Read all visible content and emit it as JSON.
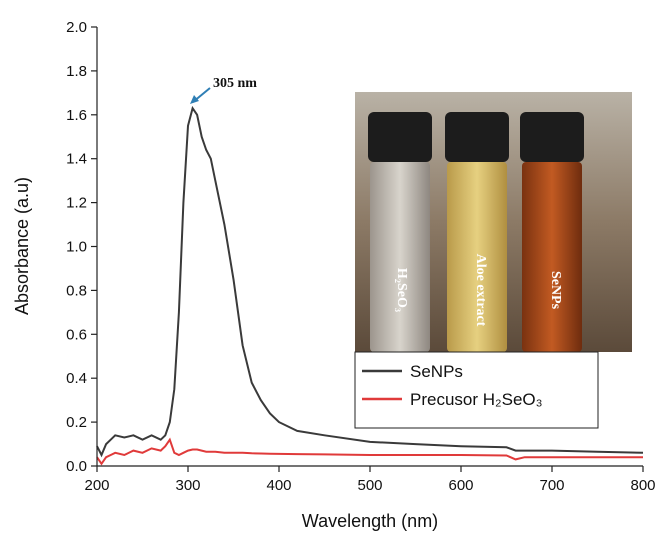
{
  "chart_data": {
    "type": "line",
    "xlabel": "Wavelength (nm)",
    "ylabel": "Absorbance (a.u)",
    "x": [
      200,
      205,
      210,
      215,
      220,
      230,
      240,
      250,
      260,
      270,
      275,
      280,
      285,
      290,
      295,
      300,
      305,
      310,
      315,
      320,
      325,
      330,
      340,
      350,
      360,
      370,
      380,
      390,
      400,
      420,
      450,
      500,
      550,
      600,
      650,
      660,
      670,
      700,
      750,
      800
    ],
    "series": [
      {
        "name": "SeNPs",
        "color": "#3a3a3a",
        "values": [
          0.09,
          0.05,
          0.1,
          0.12,
          0.14,
          0.13,
          0.14,
          0.12,
          0.14,
          0.12,
          0.14,
          0.2,
          0.35,
          0.7,
          1.2,
          1.55,
          1.63,
          1.6,
          1.5,
          1.44,
          1.4,
          1.3,
          1.1,
          0.85,
          0.55,
          0.38,
          0.3,
          0.24,
          0.2,
          0.16,
          0.14,
          0.11,
          0.1,
          0.09,
          0.085,
          0.07,
          0.07,
          0.07,
          0.065,
          0.06
        ]
      },
      {
        "name": "Precusor H₂SeO₃",
        "color": "#e03a3a",
        "values": [
          0.04,
          0.01,
          0.04,
          0.05,
          0.06,
          0.05,
          0.07,
          0.06,
          0.08,
          0.07,
          0.09,
          0.12,
          0.06,
          0.05,
          0.06,
          0.07,
          0.075,
          0.075,
          0.07,
          0.065,
          0.065,
          0.065,
          0.06,
          0.06,
          0.06,
          0.058,
          0.057,
          0.056,
          0.055,
          0.054,
          0.053,
          0.05,
          0.05,
          0.05,
          0.048,
          0.03,
          0.04,
          0.04,
          0.04,
          0.04
        ]
      }
    ],
    "xlim": [
      200,
      800
    ],
    "xticks": [
      200,
      300,
      400,
      500,
      600,
      700,
      800
    ],
    "ylim": [
      0,
      2.0
    ],
    "yticks": [
      {
        "value": 0,
        "label": "0.0"
      },
      0.2,
      0.4,
      0.6,
      0.8,
      {
        "value": 1,
        "label": "1.0"
      },
      1.2,
      1.4,
      1.6,
      1.8,
      {
        "value": 2,
        "label": "2.0"
      }
    ],
    "annotation": "305 nm",
    "inset_labels": [
      "H₂SeO₃",
      "Aloe extract",
      "SeNPs"
    ],
    "legend": "bottom-right-inset"
  }
}
